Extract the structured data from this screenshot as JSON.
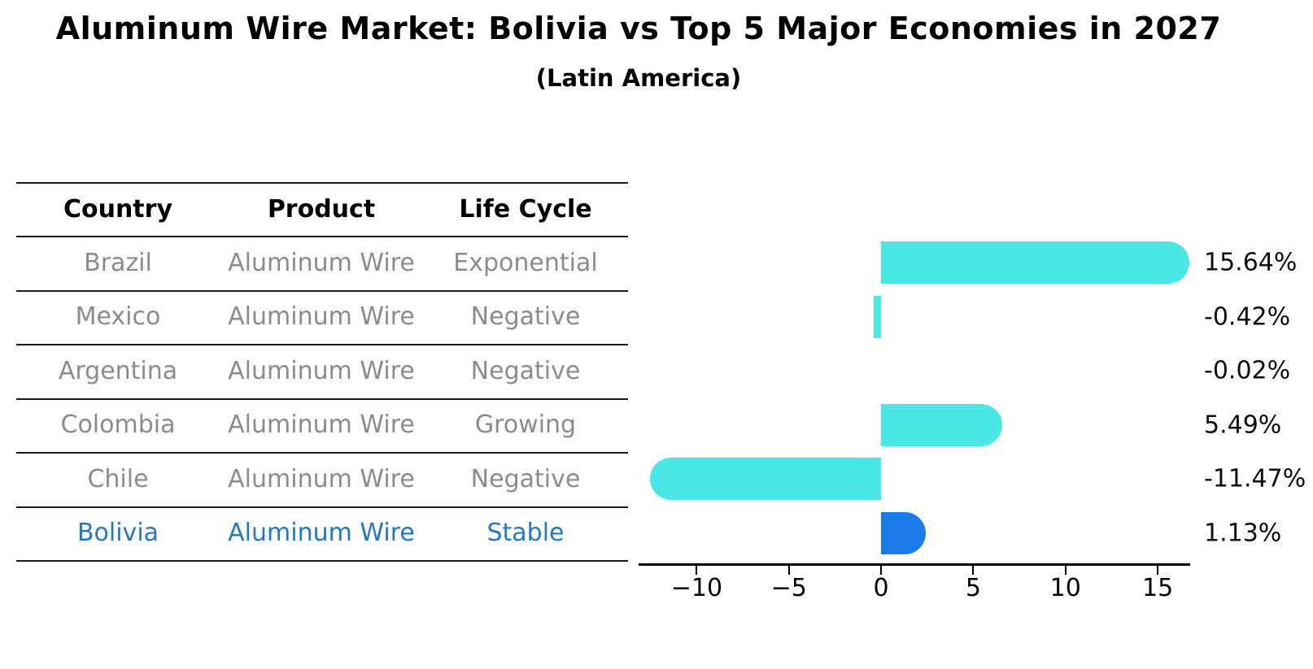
{
  "title": "Aluminum Wire Market: Bolivia vs Top 5 Major Economies in 2027",
  "subtitle": "(Latin America)",
  "table": {
    "headers": [
      "Country",
      "Product",
      "Life Cycle"
    ],
    "rows": [
      {
        "country": "Brazil",
        "product": "Aluminum Wire",
        "life_cycle": "Exponential",
        "highlight": false
      },
      {
        "country": "Mexico",
        "product": "Aluminum Wire",
        "life_cycle": "Negative",
        "highlight": false
      },
      {
        "country": "Argentina",
        "product": "Aluminum Wire",
        "life_cycle": "Negative",
        "highlight": false
      },
      {
        "country": "Colombia",
        "product": "Aluminum Wire",
        "life_cycle": "Growing",
        "highlight": false
      },
      {
        "country": "Chile",
        "product": "Aluminum Wire",
        "life_cycle": "Negative",
        "highlight": false
      },
      {
        "country": "Bolivia",
        "product": "Aluminum Wire",
        "life_cycle": "Stable",
        "highlight": true
      }
    ]
  },
  "chart_data": {
    "type": "bar",
    "orientation": "horizontal",
    "title": "Aluminum Wire Market: Bolivia vs Top 5 Major Economies in 2027 (Latin America)",
    "categories": [
      "Brazil",
      "Mexico",
      "Argentina",
      "Colombia",
      "Chile",
      "Bolivia"
    ],
    "values": [
      15.64,
      -0.42,
      -0.02,
      5.49,
      -11.47,
      1.13
    ],
    "value_labels": [
      "15.64%",
      "-0.42%",
      "-0.02%",
      "5.49%",
      "-11.47%",
      "1.13%"
    ],
    "xlim": [
      -13.15,
      16.76
    ],
    "x_ticks": [
      -10,
      -5,
      0,
      5,
      10,
      15
    ],
    "x_tick_labels": [
      "−10",
      "−5",
      "0",
      "5",
      "10",
      "15"
    ],
    "grid": false,
    "legend": false,
    "highlight_index": 5,
    "bar_colors": [
      "#49e8e4",
      "#49e8e4",
      "#49e8e4",
      "#49e8e4",
      "#49e8e4",
      "#1b7be8"
    ]
  },
  "colors": {
    "accent_cyan": "#49e8e4",
    "accent_blue": "#1b7be8",
    "highlight_text": "#2478c2",
    "row_text": "#8b8b8b",
    "header_text": "#000000",
    "table_line": "#1a1a1a",
    "axis": "#000000"
  }
}
